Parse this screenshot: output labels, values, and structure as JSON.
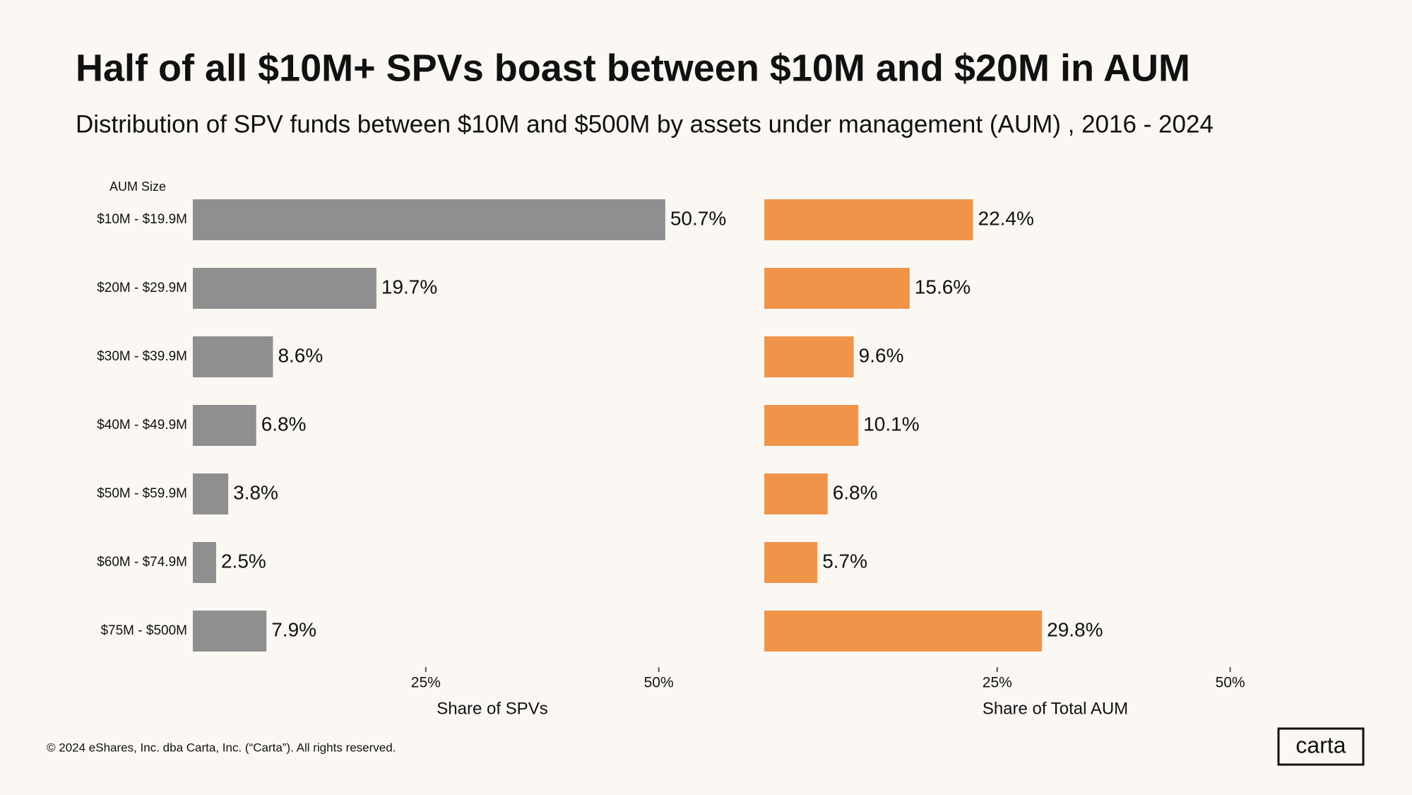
{
  "title": "Half of all $10M+ SPVs boast between $10M and $20M in AUM",
  "subtitle": "Distribution of SPV funds between $10M and $500M by assets under management (AUM) , 2016 - 2024",
  "footer": "© 2024 eShares, Inc. dba Carta, Inc. (“Carta”). All rights reserved.",
  "logo": "carta",
  "chart_data": [
    {
      "type": "barh",
      "ylabel": "AUM Size",
      "xlabel": "Share of SPVs",
      "color": "#8f8f8f",
      "categories": [
        "$10M - $19.9M",
        "$20M - $29.9M",
        "$30M - $39.9M",
        "$40M - $49.9M",
        "$50M - $59.9M",
        "$60M - $74.9M",
        "$75M - $500M"
      ],
      "values": [
        50.7,
        19.7,
        8.6,
        6.8,
        3.8,
        2.5,
        7.9
      ],
      "value_labels": [
        "50.7%",
        "19.7%",
        "8.6%",
        "6.8%",
        "3.8%",
        "2.5%",
        "7.9%"
      ],
      "xlim": [
        0,
        52
      ],
      "xticks": [
        {
          "value": 25,
          "label": "25%"
        },
        {
          "value": 50,
          "label": "50%"
        }
      ]
    },
    {
      "type": "barh",
      "xlabel": "Share of Total AUM",
      "color": "#f0944a",
      "values": [
        22.4,
        15.6,
        9.6,
        10.1,
        6.8,
        5.7,
        29.8
      ],
      "value_labels": [
        "22.4%",
        "15.6%",
        "9.6%",
        "10.1%",
        "6.8%",
        "5.7%",
        "29.8%"
      ],
      "xlim": [
        0,
        52
      ],
      "xticks": [
        {
          "value": 25,
          "label": "25%"
        },
        {
          "value": 50,
          "label": "50%"
        }
      ]
    }
  ]
}
